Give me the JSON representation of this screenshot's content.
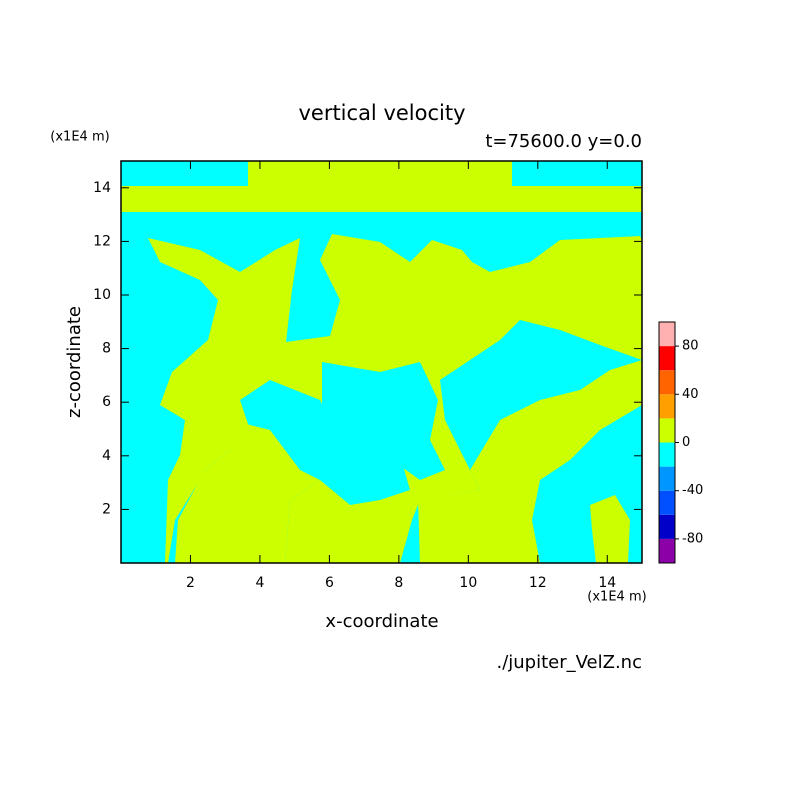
{
  "chart_data": {
    "type": "contour",
    "title": "vertical velocity",
    "subtitle": "t=75600.0 y=0.0",
    "x_label": "x-coordinate",
    "y_label": "z-coordinate",
    "x_unit": "(x1E4 m)",
    "y_unit": "(x1E4 m)",
    "source": "./jupiter_VelZ.nc",
    "xlim": [
      0,
      15
    ],
    "ylim": [
      0,
      15
    ],
    "xticks": [
      2,
      4,
      6,
      8,
      10,
      12,
      14
    ],
    "yticks": [
      2,
      4,
      6,
      8,
      10,
      12,
      14
    ],
    "colorbar": {
      "levels": [
        -100,
        -80,
        -60,
        -40,
        -20,
        0,
        20,
        40,
        60,
        80,
        100
      ],
      "colors": [
        "#8c00a8",
        "#0000c8",
        "#0050ff",
        "#0096ff",
        "#00ffff",
        "#ccff00",
        "#ffa000",
        "#ff6400",
        "#ff0000",
        "#ffb0b0"
      ],
      "ticks": [
        -80,
        -40,
        0,
        40,
        80
      ]
    }
  }
}
